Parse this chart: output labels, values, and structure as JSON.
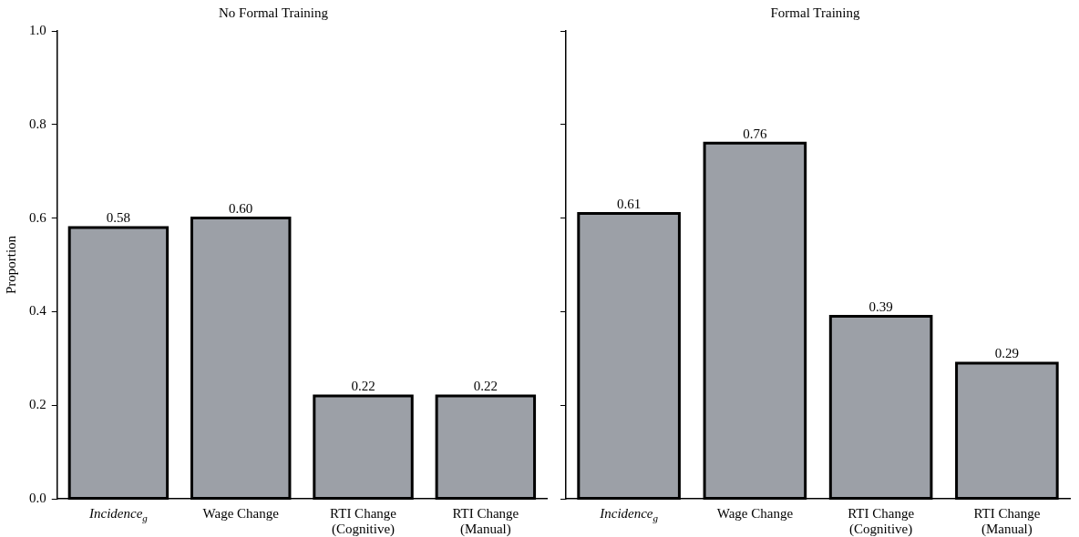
{
  "chart_data": [
    {
      "type": "bar",
      "title": "No Formal Training",
      "ylabel": "Proportion",
      "categories": [
        "Incidence$_{g}$",
        "Wage Change",
        "RTI Change\n(Cognitive)",
        "RTI Change\n(Manual)"
      ],
      "values": [
        0.58,
        0.6,
        0.22,
        0.22
      ],
      "value_labels": [
        "0.58",
        "0.60",
        "0.22",
        "0.22"
      ],
      "color": "#9ca0a7",
      "ylim": [
        0,
        1
      ],
      "yticks": [
        {
          "value": 0,
          "label": "0.0"
        },
        0.2,
        0.4,
        0.6,
        0.8,
        {
          "value": 1,
          "label": "1.0"
        }
      ],
      "grid": false,
      "legend": false
    },
    {
      "type": "bar",
      "title": "Formal Training",
      "categories": [
        "Incidence$_{g}$",
        "Wage Change",
        "RTI Change\n(Cognitive)",
        "RTI Change\n(Manual)"
      ],
      "values": [
        0.61,
        0.76,
        0.39,
        0.29
      ],
      "value_labels": [
        "0.61",
        "0.76",
        "0.39",
        "0.29"
      ],
      "color": "#9ca0a7",
      "ylim": [
        0,
        1
      ],
      "yticks": [
        {
          "value": 0,
          "label": null
        },
        {
          "value": 0.2,
          "label": null
        },
        {
          "value": 0.4,
          "label": null
        },
        {
          "value": 0.6,
          "label": null
        },
        {
          "value": 0.8,
          "label": null
        },
        {
          "value": 1,
          "label": null
        }
      ],
      "grid": false,
      "legend": false,
      "tick_labels": "x"
    }
  ]
}
